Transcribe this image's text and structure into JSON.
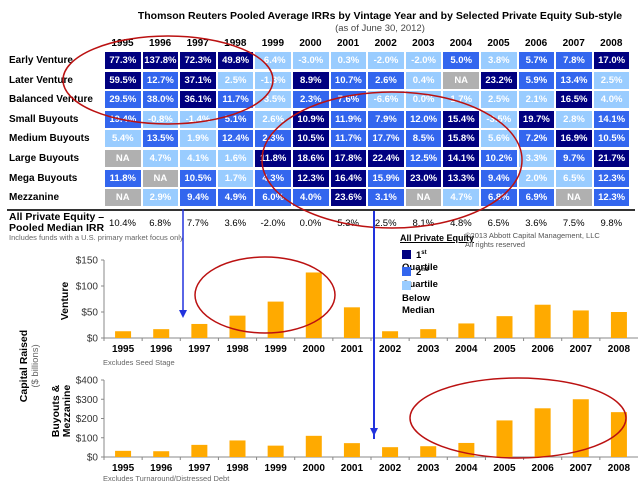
{
  "title": "Thomson Reuters Pooled Average IRRs by Vintage Year and by Selected Private Equity Sub-style",
  "subtitle": "(as of June 30, 2012)",
  "colors": {
    "first_quartile": "#000080",
    "second_quartile": "#3366ee",
    "below_median": "#99ccff",
    "na": "#b0b0b0",
    "bar": "#ffaa00",
    "highlight_ellipse": "#bb1111",
    "divider_arrow": "#2233dd"
  },
  "years": [
    "1995",
    "1996",
    "1997",
    "1998",
    "1999",
    "2000",
    "2001",
    "2002",
    "2003",
    "2004",
    "2005",
    "2006",
    "2007",
    "2008"
  ],
  "irr_table": {
    "rows": [
      {
        "label": "Early Venture",
        "values": [
          "77.3%",
          "137.8%",
          "72.3%",
          "49.8%",
          "-6.4%",
          "-3.0%",
          "0.3%",
          "-2.0%",
          "-2.0%",
          "5.0%",
          "3.8%",
          "5.7%",
          "7.8%",
          "17.0%"
        ],
        "quartiles": [
          "q1",
          "q1",
          "q1",
          "q1",
          "bm",
          "bm",
          "bm",
          "bm",
          "bm",
          "q2",
          "bm",
          "q2",
          "q2",
          "q1"
        ]
      },
      {
        "label": "Later Venture",
        "values": [
          "59.5%",
          "12.7%",
          "37.1%",
          "2.5%",
          "-1.3%",
          "8.9%",
          "10.7%",
          "2.6%",
          "0.4%",
          "NA",
          "23.2%",
          "5.9%",
          "13.4%",
          "2.5%"
        ],
        "quartiles": [
          "q1",
          "q2",
          "q1",
          "bm",
          "bm",
          "q1",
          "q2",
          "q2",
          "bm",
          "na",
          "q1",
          "q2",
          "q2",
          "bm"
        ]
      },
      {
        "label": "Balanced Venture",
        "values": [
          "29.5%",
          "38.0%",
          "36.1%",
          "11.7%",
          "-3.5%",
          "2.3%",
          "7.6%",
          "-6.6%",
          "0.0%",
          "1.7%",
          "2.5%",
          "2.1%",
          "16.5%",
          "4.0%"
        ],
        "quartiles": [
          "q2",
          "q2",
          "q1",
          "q2",
          "bm",
          "q2",
          "q2",
          "bm",
          "bm",
          "bm",
          "bm",
          "bm",
          "q1",
          "bm"
        ]
      },
      {
        "label": "Small Buyouts",
        "values": [
          "19.4%",
          "-0.8%",
          "-1.4%",
          "5.1%",
          "2.6%",
          "10.9%",
          "11.9%",
          "7.9%",
          "12.0%",
          "15.4%",
          "-3.5%",
          "19.7%",
          "2.8%",
          "14.1%"
        ],
        "quartiles": [
          "q2",
          "bm",
          "bm",
          "q2",
          "bm",
          "q1",
          "q2",
          "q2",
          "q2",
          "q1",
          "bm",
          "q1",
          "bm",
          "q2"
        ]
      },
      {
        "label": "Medium Buyouts",
        "values": [
          "5.4%",
          "13.5%",
          "1.9%",
          "12.4%",
          "2.3%",
          "10.5%",
          "11.7%",
          "17.7%",
          "8.5%",
          "15.8%",
          "5.6%",
          "7.2%",
          "16.9%",
          "10.5%"
        ],
        "quartiles": [
          "bm",
          "q2",
          "bm",
          "q2",
          "q2",
          "q1",
          "q2",
          "q2",
          "q2",
          "q1",
          "bm",
          "q2",
          "q1",
          "q2"
        ]
      },
      {
        "label": "Large Buyouts",
        "values": [
          "NA",
          "4.7%",
          "4.1%",
          "1.6%",
          "11.8%",
          "18.6%",
          "17.8%",
          "22.4%",
          "12.5%",
          "14.1%",
          "10.2%",
          "3.3%",
          "9.7%",
          "21.7%"
        ],
        "quartiles": [
          "na",
          "bm",
          "bm",
          "bm",
          "q1",
          "q1",
          "q1",
          "q1",
          "q2",
          "q1",
          "q2",
          "bm",
          "q2",
          "q1"
        ]
      },
      {
        "label": "Mega Buyouts",
        "values": [
          "11.8%",
          "NA",
          "10.5%",
          "1.7%",
          "4.3%",
          "12.3%",
          "16.4%",
          "15.9%",
          "23.0%",
          "13.3%",
          "9.4%",
          "2.0%",
          "6.5%",
          "12.3%"
        ],
        "quartiles": [
          "q2",
          "na",
          "q2",
          "bm",
          "q2",
          "q1",
          "q1",
          "q2",
          "q1",
          "q1",
          "q2",
          "bm",
          "bm",
          "q2"
        ]
      },
      {
        "label": "Mezzanine",
        "values": [
          "NA",
          "2.9%",
          "9.4%",
          "4.9%",
          "6.0%",
          "4.0%",
          "23.6%",
          "3.1%",
          "NA",
          "4.7%",
          "6.8%",
          "6.9%",
          "NA",
          "12.3%"
        ],
        "quartiles": [
          "na",
          "bm",
          "q2",
          "q2",
          "q2",
          "q2",
          "q1",
          "q2",
          "na",
          "bm",
          "q2",
          "q2",
          "na",
          "q2"
        ]
      }
    ],
    "all_pe": {
      "label_line1": "All Private Equity –",
      "label_line2": "Pooled Median IRR",
      "values": [
        "10.4%",
        "6.8%",
        "7.7%",
        "3.6%",
        "-2.0%",
        "0.0%",
        "5.3%",
        "2.5%",
        "8.1%",
        "4.8%",
        "6.5%",
        "3.6%",
        "7.5%",
        "9.8%"
      ]
    },
    "note": "Includes funds with a U.S. primary market focus only"
  },
  "legend": {
    "title": "All Private Equity",
    "items": [
      {
        "label": "1",
        "sup": "st",
        "suffix": " Quartile",
        "key": "first_quartile"
      },
      {
        "label": "2",
        "sup": "nd",
        "suffix": " Quartile",
        "key": "second_quartile"
      },
      {
        "label": "Below Median",
        "sup": "",
        "suffix": "",
        "key": "below_median"
      }
    ]
  },
  "copyright": {
    "line1": "©2013 Abbott Capital Management, LLC",
    "line2": "All rights reserved"
  },
  "capital_axis": {
    "title": "Capital Raised",
    "unit": "($ billions)"
  },
  "chart_data": [
    {
      "type": "bar",
      "title": "Venture",
      "xlabel": "",
      "ylabel": "Venture",
      "categories": [
        "1995",
        "1996",
        "1997",
        "1998",
        "1999",
        "2000",
        "2001",
        "2002",
        "2003",
        "2004",
        "2005",
        "2006",
        "2007",
        "2008"
      ],
      "values": [
        13,
        17,
        27,
        43,
        70,
        126,
        59,
        13,
        17,
        28,
        42,
        64,
        53,
        50
      ],
      "ylim": [
        0,
        150
      ],
      "yticks": [
        "$0",
        "$50",
        "$100",
        "$150"
      ],
      "ytick_values": [
        0,
        50,
        100,
        150
      ],
      "note": "Excludes Seed Stage",
      "grid": false
    },
    {
      "type": "bar",
      "title": "Buyouts & Mezzanine",
      "xlabel": "",
      "ylabel": "Buyouts & Mezzanine",
      "ylabel_line1": "Buyouts &",
      "ylabel_line2": "Mezzanine",
      "categories": [
        "1995",
        "1996",
        "1997",
        "1998",
        "1999",
        "2000",
        "2001",
        "2002",
        "2003",
        "2004",
        "2005",
        "2006",
        "2007",
        "2008"
      ],
      "values": [
        32,
        30,
        63,
        86,
        59,
        110,
        72,
        51,
        56,
        73,
        190,
        253,
        300,
        233
      ],
      "ylim": [
        0,
        400
      ],
      "yticks": [
        "$0",
        "$100",
        "$200",
        "$300",
        "$400"
      ],
      "ytick_values": [
        0,
        100,
        200,
        300,
        400
      ],
      "note": "Excludes Turnaround/Distressed Debt",
      "grid": false
    }
  ]
}
